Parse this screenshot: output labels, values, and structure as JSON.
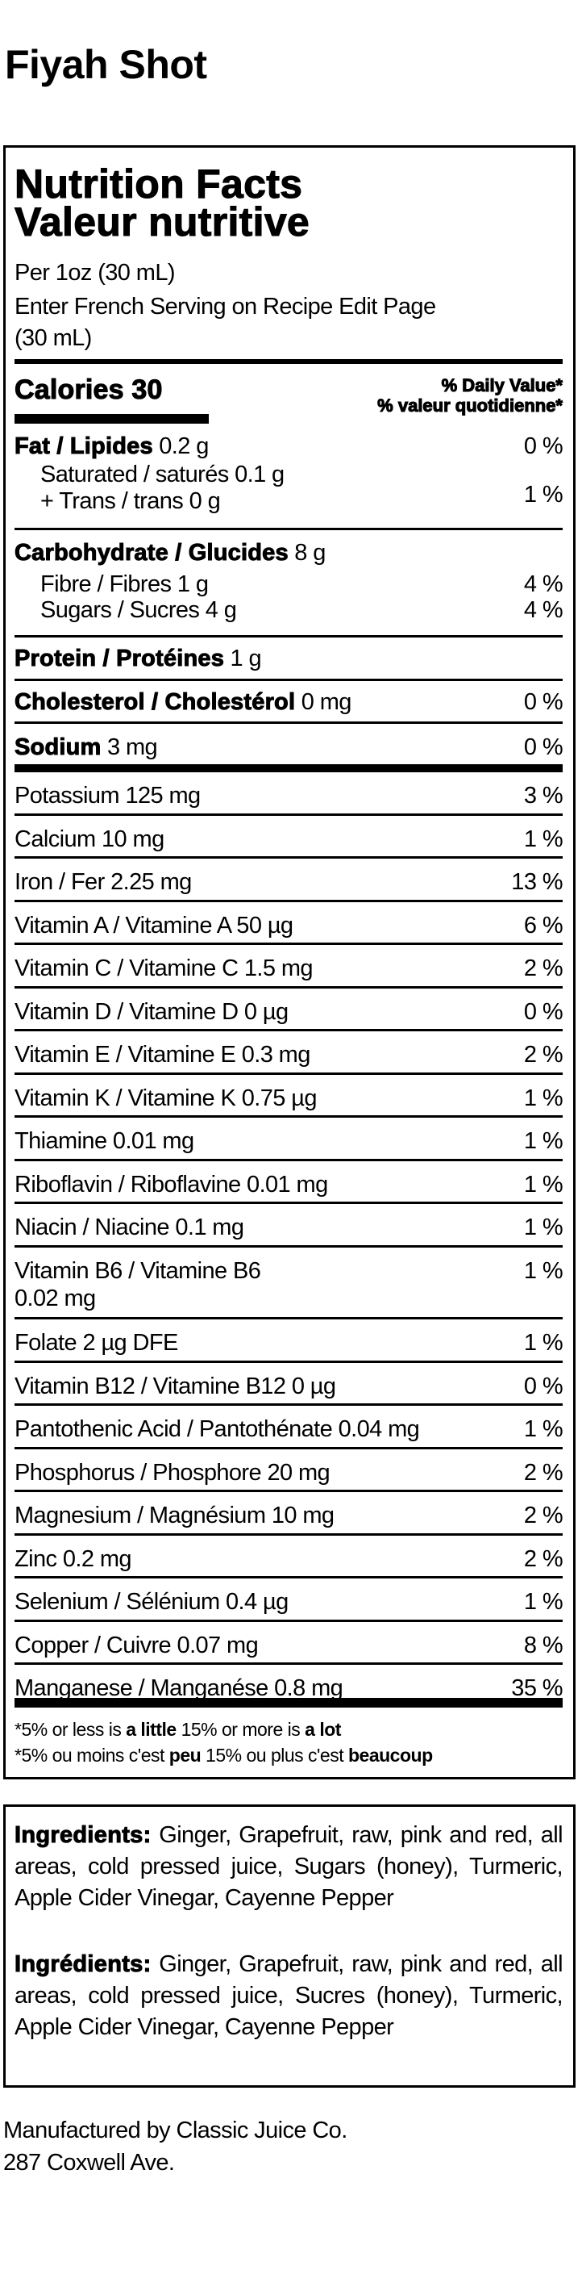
{
  "product": {
    "name": "Fiyah Shot"
  },
  "label": {
    "title_en": "Nutrition Facts",
    "title_fr": "Valeur nutritive",
    "serving_line1": "Per 1oz (30 mL)",
    "serving_line2": "Enter French Serving on Recipe Edit Page",
    "serving_line3": "(30 mL)",
    "calories_label": "Calories 30",
    "dv_header_en": "% Daily Value*",
    "dv_header_fr": "% valeur quotidienne*",
    "fat": {
      "label": "Fat / Lipides",
      "amount": "0.2 g",
      "dv": "0 %"
    },
    "saturated": {
      "label": "Saturated / saturés 0.1 g"
    },
    "trans": {
      "label": "+ Trans / trans 0 g"
    },
    "sat_trans_dv": "1 %",
    "carbohydrate": {
      "label": "Carbohydrate / Glucides",
      "amount": "8 g"
    },
    "fibre": {
      "label": "Fibre / Fibres 1 g",
      "dv": "4 %"
    },
    "sugars": {
      "label": "Sugars / Sucres 4 g",
      "dv": "4 %"
    },
    "protein": {
      "label": "Protein / Protéines",
      "amount": "1 g"
    },
    "cholesterol": {
      "label": "Cholesterol / Cholestérol",
      "amount": "0 mg",
      "dv": "0 %"
    },
    "sodium": {
      "label": "Sodium",
      "amount": "3 mg",
      "dv": "0 %"
    },
    "micronutrients": [
      {
        "text": "Potassium 125 mg",
        "dv": "3 %"
      },
      {
        "text": "Calcium 10 mg",
        "dv": "1 %"
      },
      {
        "text": "Iron / Fer 2.25 mg",
        "dv": "13 %"
      },
      {
        "text": "Vitamin A / Vitamine A 50 µg",
        "dv": "6 %"
      },
      {
        "text": "Vitamin C / Vitamine C 1.5 mg",
        "dv": "2 %"
      },
      {
        "text": "Vitamin D / Vitamine D 0 µg",
        "dv": "0 %"
      },
      {
        "text": "Vitamin E / Vitamine E 0.3 mg",
        "dv": "2 %"
      },
      {
        "text": "Vitamin K / Vitamine K 0.75 µg",
        "dv": "1 %"
      },
      {
        "text": "Thiamine 0.01 mg",
        "dv": "1 %"
      },
      {
        "text": "Riboflavin / Riboflavine 0.01 mg",
        "dv": "1 %"
      },
      {
        "text": "Niacin / Niacine 0.1 mg",
        "dv": "1 %"
      },
      {
        "text": "Vitamin B6 / Vitamine B6",
        "text2": "0.02 mg",
        "dv": "1 %"
      },
      {
        "text": "Folate 2 µg DFE",
        "dv": "1 %"
      },
      {
        "text": "Vitamin B12 / Vitamine B12 0 µg",
        "dv": "0 %"
      },
      {
        "text": "Pantothenic Acid / Pantothénate 0.04 mg",
        "dv": "1 %"
      },
      {
        "text": "Phosphorus / Phosphore 20 mg",
        "dv": "2 %"
      },
      {
        "text": "Magnesium / Magnésium 10 mg",
        "dv": "2 %"
      },
      {
        "text": "Zinc 0.2 mg",
        "dv": "2 %"
      },
      {
        "text": "Selenium / Sélénium 0.4 µg",
        "dv": "1 %"
      },
      {
        "text": "Copper / Cuivre 0.07 mg",
        "dv": "8 %"
      },
      {
        "text": "Manganese / Manganése 0.8 mg",
        "dv": "35 %"
      }
    ],
    "footnote_en": {
      "a": "*5% or less is ",
      "b": "a little",
      "c": " 15% or more is ",
      "d": "a lot"
    },
    "footnote_fr": {
      "a": "*5% ou moins c'est ",
      "b": "peu",
      "c": " 15% ou plus c'est ",
      "d": "beaucoup"
    }
  },
  "ingredients": {
    "en_label": "Ingredients:",
    "en_text": "Ginger, Grapefruit, raw, pink and red, all areas, cold pressed juice, Sugars (honey), Turmeric, Apple Cider Vinegar, Cayenne Pepper",
    "fr_label": "Ingrédients:",
    "fr_text": "Ginger, Grapefruit, raw, pink and red, all areas, cold pressed juice, Sucres (honey), Turmeric, Apple Cider Vinegar, Cayenne Pepper"
  },
  "manufacturer": {
    "line1": "Manufactured by Classic Juice Co.",
    "line2": "287 Coxwell Ave."
  }
}
